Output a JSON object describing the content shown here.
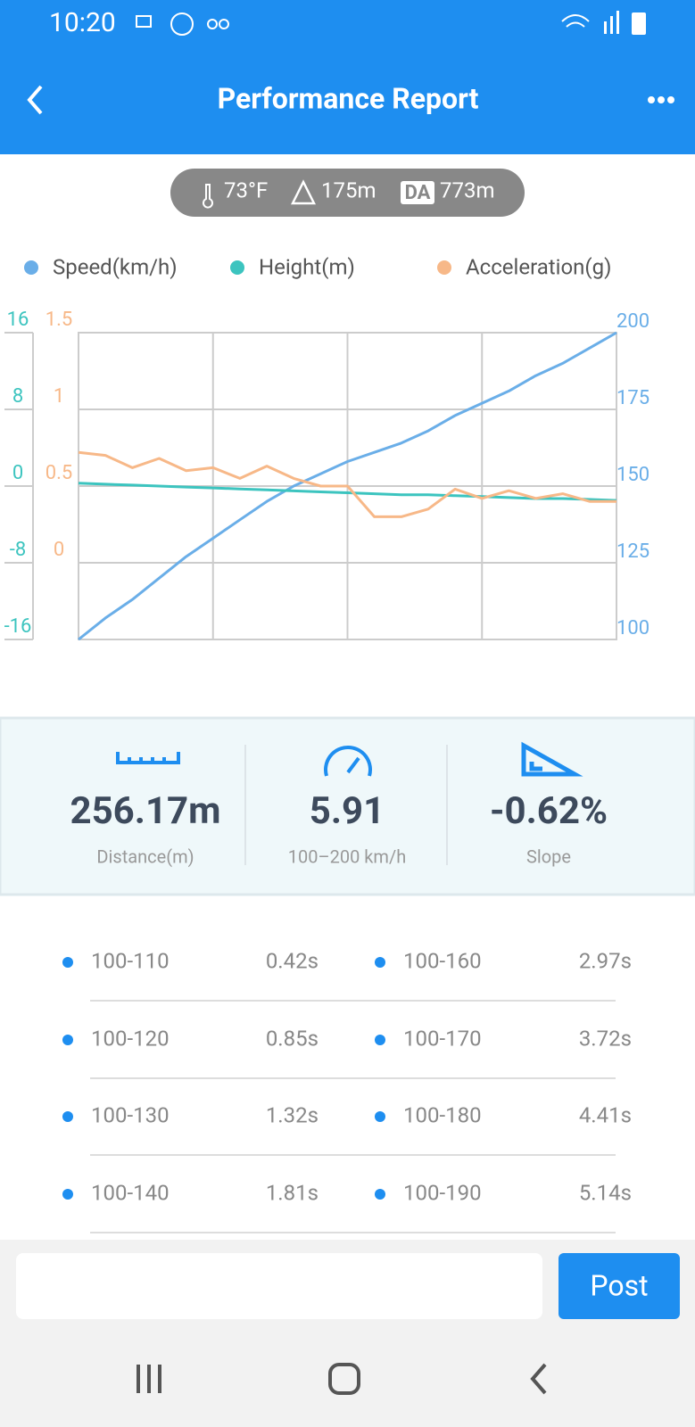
{
  "status_bar": {
    "time": "10:20"
  },
  "header": {
    "title": "Performance Report"
  },
  "conditions": {
    "temperature": "73°F",
    "altitude": "175m",
    "density_altitude_badge": "DA",
    "density_altitude": "773m"
  },
  "chart_data": {
    "type": "line",
    "series": [
      {
        "name": "Speed(km/h)",
        "color": "#6aaee8",
        "axis": "y2",
        "values": [
          100,
          107,
          113,
          120,
          127,
          133,
          139,
          145,
          150,
          154,
          158,
          161,
          164,
          168,
          173,
          177,
          181,
          186,
          190,
          195,
          200
        ]
      },
      {
        "name": "Height(m)",
        "color": "#3cc4bf",
        "axis": "y",
        "values": [
          0.3,
          0.2,
          0.1,
          0,
          -0.1,
          -0.2,
          -0.3,
          -0.4,
          -0.5,
          -0.6,
          -0.7,
          -0.8,
          -0.9,
          -0.9,
          -1,
          -1.1,
          -1.2,
          -1.3,
          -1.3,
          -1.4,
          -1.5
        ]
      },
      {
        "name": "Acceleration(g)",
        "color": "#f7b888",
        "axis": "y3",
        "values": [
          0.72,
          0.7,
          0.62,
          0.68,
          0.6,
          0.62,
          0.55,
          0.63,
          0.55,
          0.5,
          0.5,
          0.3,
          0.3,
          0.35,
          0.48,
          0.42,
          0.47,
          0.42,
          0.45,
          0.4,
          0.4
        ]
      }
    ],
    "ylim": [
      -16,
      16
    ],
    "yticks": [
      -16,
      -8,
      0,
      8,
      16
    ],
    "y3lim": [
      -0.5,
      1.5
    ],
    "y3ticks": [
      0,
      0.5,
      1,
      1.5
    ],
    "y2lim": [
      100,
      200
    ],
    "y2ticks": [
      100,
      125,
      150,
      175,
      200
    ],
    "grid": true
  },
  "stats": [
    {
      "value": "256.17m",
      "label": "Distance(m)"
    },
    {
      "value": "5.91",
      "label": "100–200 km/h"
    },
    {
      "value": "-0.62%",
      "label": "Slope"
    }
  ],
  "splits": [
    {
      "range": "100-110",
      "time": "0.42s"
    },
    {
      "range": "100-120",
      "time": "0.85s"
    },
    {
      "range": "100-130",
      "time": "1.32s"
    },
    {
      "range": "100-140",
      "time": "1.81s"
    },
    {
      "range": "100-160",
      "time": "2.97s"
    },
    {
      "range": "100-170",
      "time": "3.72s"
    },
    {
      "range": "100-180",
      "time": "4.41s"
    },
    {
      "range": "100-190",
      "time": "5.14s"
    }
  ],
  "composer": {
    "button": "Post"
  }
}
